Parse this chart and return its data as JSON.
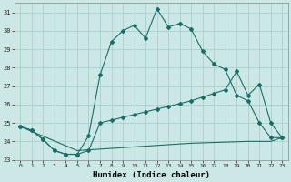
{
  "title": "",
  "xlabel": "Humidex (Indice chaleur)",
  "background_color": "#cce8e6",
  "line_color": "#1a6e65",
  "grid_color": "#aacfcc",
  "xlim": [
    -0.5,
    23.5
  ],
  "ylim": [
    23,
    31.5
  ],
  "yticks": [
    23,
    24,
    25,
    26,
    27,
    28,
    29,
    30,
    31
  ],
  "xticks": [
    0,
    1,
    2,
    3,
    4,
    5,
    6,
    7,
    8,
    9,
    10,
    11,
    12,
    13,
    14,
    15,
    16,
    17,
    18,
    19,
    20,
    21,
    22,
    23
  ],
  "series1_x": [
    0,
    1,
    2,
    3,
    4,
    5,
    6,
    7,
    8,
    9,
    10,
    11,
    12,
    13,
    14,
    15,
    16,
    17,
    18,
    19,
    20,
    21,
    22,
    23
  ],
  "series1_y": [
    24.8,
    24.6,
    24.1,
    23.5,
    23.3,
    23.3,
    24.3,
    27.6,
    29.4,
    30.0,
    30.3,
    29.6,
    31.2,
    30.2,
    30.4,
    30.1,
    28.9,
    28.2,
    27.9,
    26.5,
    26.2,
    25.0,
    24.2,
    24.2
  ],
  "series2_x": [
    0,
    1,
    2,
    3,
    4,
    5,
    6,
    7,
    8,
    9,
    10,
    11,
    12,
    13,
    14,
    15,
    16,
    17,
    18,
    19,
    20,
    21,
    22,
    23
  ],
  "series2_y": [
    24.8,
    24.6,
    24.1,
    23.5,
    23.3,
    23.3,
    23.5,
    25.0,
    25.15,
    25.3,
    25.45,
    25.6,
    25.75,
    25.9,
    26.05,
    26.2,
    26.4,
    26.6,
    26.8,
    27.8,
    26.5,
    27.1,
    25.0,
    24.2
  ],
  "series3_x": [
    0,
    5,
    10,
    15,
    20,
    21,
    22,
    23
  ],
  "series3_y": [
    24.8,
    23.5,
    23.7,
    23.9,
    24.0,
    24.0,
    24.0,
    24.2
  ]
}
